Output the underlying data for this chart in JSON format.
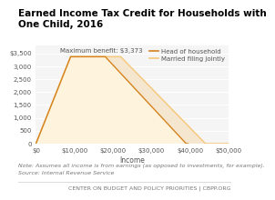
{
  "title": "Earned Income Tax Credit for Households with\nOne Child, 2016",
  "xlabel": "Income",
  "ylabel": "",
  "xlim": [
    0,
    50000
  ],
  "ylim": [
    0,
    3800
  ],
  "yticks": [
    0,
    500,
    1000,
    1500,
    2000,
    2500,
    3000,
    3500
  ],
  "xticks": [
    0,
    10000,
    20000,
    30000,
    40000,
    50000
  ],
  "xtick_labels": [
    "$0",
    "$10,000",
    "$20,000",
    "$30,000",
    "$40,000",
    "$50,000"
  ],
  "ytick_labels": [
    "0",
    "500",
    "1,000",
    "1,500",
    "2,000",
    "2,500",
    "3,000",
    "$3,500"
  ],
  "head_of_household_x": [
    0,
    9000,
    18000,
    39000,
    39500
  ],
  "head_of_household_y": [
    0,
    3373,
    3373,
    0,
    0
  ],
  "married_filing_x": [
    0,
    9000,
    22000,
    44000,
    50000
  ],
  "married_filing_y": [
    0,
    3373,
    3373,
    0,
    0
  ],
  "max_benefit": 3373,
  "max_benefit_label": "Maximum benefit: $3,373",
  "max_benefit_x": 19000,
  "max_benefit_y": 3373,
  "line_color_head": "#D4821E",
  "line_color_married": "#F5C87A",
  "fill_color_head": "#F5E6D0",
  "fill_color_married": "#FEF3DC",
  "bg_color": "#F5F5F5",
  "note_line1": "Note: Assumes all income is from earnings (as opposed to investments, for example).",
  "note_line2": "Source: Internal Revenue Service",
  "footer": "CENTER ON BUDGET AND POLICY PRIORITIES | CBPP.ORG",
  "legend_head": "Head of household",
  "legend_married": "Married filing jointly",
  "title_fontsize": 7.5,
  "axis_fontsize": 5.5,
  "tick_fontsize": 5,
  "note_fontsize": 4.5,
  "footer_fontsize": 4.5
}
